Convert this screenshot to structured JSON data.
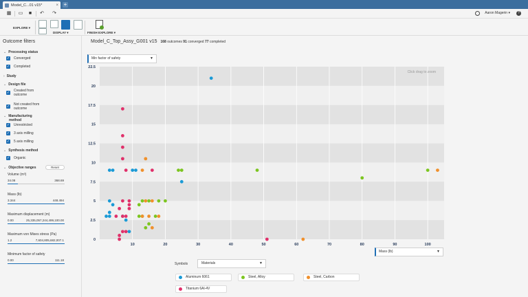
{
  "window": {
    "tab_label": "Model_C...01 v15*",
    "new_tab": "+"
  },
  "quickbar": {
    "user_name": "Aaron Magerin",
    "user_caret": "▾",
    "help_label": "?"
  },
  "ribbon": {
    "explore_label": "EXPLORE ▾",
    "display_label": "DISPLAY ▾",
    "finish_label": "FINISH EXPLORE ▾"
  },
  "sidebar": {
    "title": "Outcome filters",
    "processing_status": {
      "title": "Processing status",
      "options": [
        "Converged",
        "Completed"
      ]
    },
    "study_title": "Study",
    "design_file": {
      "title": "Design file",
      "options": [
        "Created from",
        "outcome",
        "Not created from",
        "outcome"
      ]
    },
    "manufacturing": {
      "title_line1": "Manufacturing",
      "title_line2": "method",
      "options": [
        "Unrestricted",
        "3 axis milling",
        "5 axis milling"
      ]
    },
    "synthesis": {
      "title": "Synthesis method",
      "options": [
        "Organic"
      ]
    },
    "objective_ranges": {
      "title": "Objective ranges",
      "reset_label": "Reset",
      "ranges": [
        {
          "label": "Volume (m³)",
          "min": "34.08",
          "max": "368.69",
          "fill_pct": 18
        },
        {
          "label": "Mass (lb)",
          "min": "3.344",
          "max": "448.494",
          "fill_pct": 100
        },
        {
          "label": "Maximum displacement (m)",
          "min": "0.00",
          "max": "25,335,057,244,499,100.00",
          "fill_pct": 100
        },
        {
          "label": "Maximum von Mises stress (Pa)",
          "min": "1.2",
          "max": "7,604,805,682,007.1",
          "fill_pct": 100
        },
        {
          "label": "Minimum factor of safety",
          "min": "0.00",
          "max": "111.18",
          "fill_pct": 100
        }
      ]
    }
  },
  "main": {
    "title": "Model_C_Top_Assy_G001 v15",
    "outcomes_count": "168",
    "outcomes_label": "outcomes",
    "converged_count": "91",
    "converged_label": "converged",
    "completed_count": "77",
    "completed_label": "completed",
    "y_axis_select": "Min factor of safety",
    "x_axis_select": "Mass (lb)",
    "click_drag_hint": "Click drag to zoom",
    "symbols_label": "Symbols",
    "symbols_select": "Materials",
    "legend": [
      {
        "name": "Aluminum 6061",
        "color": "#1a9ad6"
      },
      {
        "name": "Steel, Alloy",
        "color": "#7cc520"
      },
      {
        "name": "Steel, Carbon",
        "color": "#f0902c"
      },
      {
        "name": "Titanium 6Al-4V",
        "color": "#e0306a"
      }
    ]
  },
  "chart_data": {
    "type": "scatter",
    "xlim": [
      0,
      105
    ],
    "ylim": [
      0,
      22.5
    ],
    "x_ticks": [
      10,
      20,
      30,
      40,
      50,
      60,
      70,
      80,
      90,
      100
    ],
    "y_ticks": [
      0,
      2.5,
      5,
      7.5,
      10,
      12.5,
      15,
      17.5,
      20,
      22.5
    ],
    "x_tick_labels": [
      "10",
      "20",
      "30",
      "40",
      "50",
      "60",
      "70",
      "80",
      "90",
      "100"
    ],
    "y_tick_labels": [
      "0",
      "2.5",
      "5",
      "7.5",
      "10",
      "12.5",
      "15",
      "17.5",
      "20",
      "22.5"
    ],
    "series": [
      {
        "name": "Aluminum 6061",
        "color": "#1a9ad6",
        "points": [
          [
            34,
            21
          ],
          [
            3,
            9
          ],
          [
            4,
            9
          ],
          [
            10,
            9
          ],
          [
            11,
            9
          ],
          [
            25,
            7.5
          ],
          [
            3,
            5
          ],
          [
            4,
            4.5
          ],
          [
            3,
            3.5
          ],
          [
            2,
            3
          ],
          [
            3,
            3
          ],
          [
            7,
            3
          ],
          [
            8,
            2.5
          ],
          [
            9,
            1
          ]
        ]
      },
      {
        "name": "Steel, Alloy",
        "color": "#7cc520",
        "points": [
          [
            24,
            9
          ],
          [
            25,
            9
          ],
          [
            48,
            9
          ],
          [
            100,
            9
          ],
          [
            80,
            8
          ],
          [
            13,
            5
          ],
          [
            18,
            5
          ],
          [
            20,
            5
          ],
          [
            12,
            4.5
          ],
          [
            12,
            3
          ],
          [
            13,
            3
          ],
          [
            15,
            2
          ],
          [
            14,
            1.5
          ],
          [
            17,
            3
          ],
          [
            15,
            5
          ]
        ]
      },
      {
        "name": "Steel, Carbon",
        "color": "#f0902c",
        "points": [
          [
            14,
            10.5
          ],
          [
            13,
            9
          ],
          [
            103,
            9
          ],
          [
            16,
            5
          ],
          [
            14,
            5
          ],
          [
            13,
            3
          ],
          [
            15,
            3
          ],
          [
            18,
            3
          ],
          [
            16,
            1.5
          ],
          [
            62,
            0
          ]
        ]
      },
      {
        "name": "Titanium 6Al-4V",
        "color": "#e0306a",
        "points": [
          [
            7,
            17
          ],
          [
            7,
            13.5
          ],
          [
            7,
            12
          ],
          [
            7,
            10.5
          ],
          [
            8,
            9
          ],
          [
            16,
            9
          ],
          [
            7,
            5
          ],
          [
            9,
            5
          ],
          [
            9,
            4.5
          ],
          [
            6,
            4
          ],
          [
            7,
            3
          ],
          [
            8,
            3
          ],
          [
            5,
            3
          ],
          [
            7,
            1
          ],
          [
            8,
            1
          ],
          [
            6,
            0.5
          ],
          [
            6,
            0
          ],
          [
            51,
            0
          ],
          [
            9,
            4
          ]
        ]
      }
    ]
  }
}
